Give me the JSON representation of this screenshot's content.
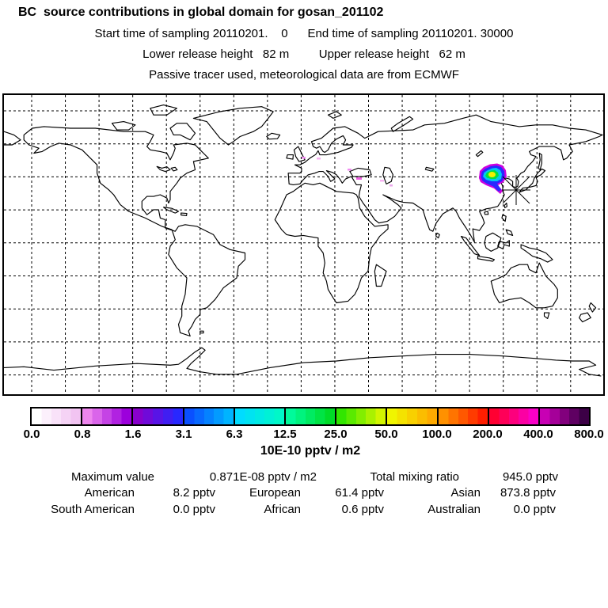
{
  "header": {
    "title": "BC  source contributions in global domain for gosan_201102",
    "line2": "Start time of sampling 20110201.    0      End time of sampling 20110201. 30000",
    "line3": "Lower release height   82 m         Upper release height   62 m",
    "line4": "Passive tracer used, meteorological data are from ECMWF"
  },
  "colorbar": {
    "unit": "10E-10 pptv / m2",
    "ticks": [
      "0.0",
      "0.8",
      "1.6",
      "3.1",
      "6.3",
      "12.5",
      "25.0",
      "50.0",
      "100.0",
      "200.0",
      "400.0",
      "800.0"
    ],
    "segments": [
      [
        "#FFFFFF",
        "#F2C4F2"
      ],
      [
        "#EE86EE",
        "#9C00DC"
      ],
      [
        "#8800CC",
        "#2828FF"
      ],
      [
        "#0A50FF",
        "#00B4FF"
      ],
      [
        "#00DCFF",
        "#00F8C8"
      ],
      [
        "#00FA9B",
        "#00DC28"
      ],
      [
        "#32E600",
        "#D2F500"
      ],
      [
        "#F0F500",
        "#FFAA00"
      ],
      [
        "#FF9100",
        "#FF1E00"
      ],
      [
        "#FF0032",
        "#FA00C8"
      ],
      [
        "#C800B4",
        "#3C0046"
      ]
    ]
  },
  "stats": {
    "row1": [
      {
        "label": "Maximum value",
        "value": "0.871E-08 pptv / m2"
      },
      {
        "label": "Total mixing ratio",
        "value": "945.0 pptv"
      }
    ],
    "rows": [
      [
        {
          "label": "American",
          "value": "8.2 pptv"
        },
        {
          "label": "European",
          "value": "61.4 pptv"
        },
        {
          "label": "Asian",
          "value": "873.8 pptv"
        }
      ],
      [
        {
          "label": "South American",
          "value": "0.0 pptv"
        },
        {
          "label": "African",
          "value": "0.6 pptv"
        },
        {
          "label": "Australian",
          "value": "0.0 pptv"
        }
      ]
    ]
  },
  "chart_data": {
    "type": "heatmap",
    "title": "BC source contributions in global domain for gosan_201102",
    "subtitle": [
      "Start time of sampling 20110201. 0  End time of sampling 20110201. 30000",
      "Lower release height 82 m  Upper release height 62 m",
      "Passive tracer used, meteorological data are from ECMWF"
    ],
    "projection": "equirectangular world map, lon -180..180, lat -90..90, dashed graticule every 20 deg",
    "colorbar_unit": "10E-10 pptv / m2",
    "colorbar_levels": [
      0.0,
      0.8,
      1.6,
      3.1,
      6.3,
      12.5,
      25.0,
      50.0,
      100.0,
      200.0,
      400.0,
      800.0
    ],
    "receptor_site": {
      "name_hint": "gosan",
      "marker": "asterisk",
      "lon": 126.2,
      "lat": 33.5
    },
    "plume": {
      "approx_lon_range": [
        105,
        122
      ],
      "approx_lat_range": [
        33,
        42
      ],
      "levels_outer_to_core": [
        "magenta",
        "blue",
        "cyan",
        "green",
        "yellow"
      ]
    },
    "maximum_value_pptv_per_m2": "0.871E-08",
    "total_mixing_ratio_pptv": 945.0,
    "contributions_pptv": {
      "American": 8.2,
      "European": 61.4,
      "Asian": 873.8,
      "South American": 0.0,
      "African": 0.6,
      "Australian": 0.0
    }
  }
}
